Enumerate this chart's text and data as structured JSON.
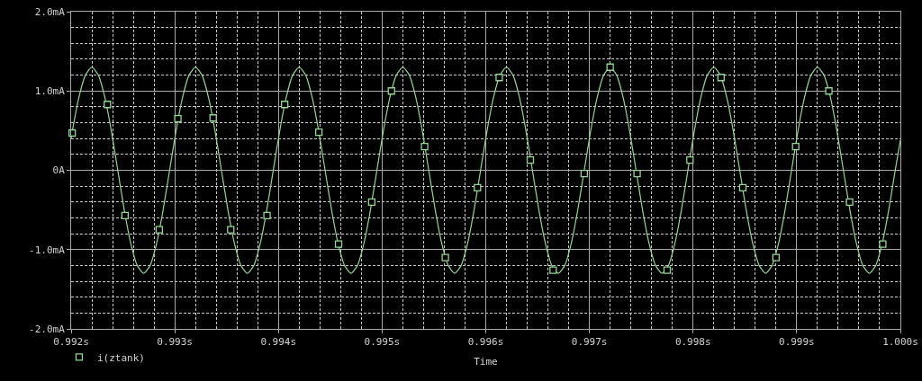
{
  "chart_data": {
    "type": "line",
    "xlabel": "Time",
    "xlim": [
      0.992,
      1.0
    ],
    "xticks": [
      {
        "value": 0.992,
        "label": "0.992s"
      },
      {
        "value": 0.9922,
        "label": null
      },
      {
        "value": 0.9924,
        "label": null
      },
      {
        "value": 0.9926,
        "label": null
      },
      {
        "value": 0.9928,
        "label": null
      },
      {
        "value": 0.993,
        "label": "0.993s"
      },
      {
        "value": 0.9932,
        "label": null
      },
      {
        "value": 0.9934,
        "label": null
      },
      {
        "value": 0.9936,
        "label": null
      },
      {
        "value": 0.9938,
        "label": null
      },
      {
        "value": 0.994,
        "label": "0.994s"
      },
      {
        "value": 0.9942,
        "label": null
      },
      {
        "value": 0.9944,
        "label": null
      },
      {
        "value": 0.9946,
        "label": null
      },
      {
        "value": 0.9948,
        "label": null
      },
      {
        "value": 0.995,
        "label": "0.995s"
      },
      {
        "value": 0.9952,
        "label": null
      },
      {
        "value": 0.9954,
        "label": null
      },
      {
        "value": 0.9956,
        "label": null
      },
      {
        "value": 0.9958,
        "label": null
      },
      {
        "value": 0.996,
        "label": "0.996s"
      },
      {
        "value": 0.9962,
        "label": null
      },
      {
        "value": 0.9964,
        "label": null
      },
      {
        "value": 0.9966,
        "label": null
      },
      {
        "value": 0.9968,
        "label": null
      },
      {
        "value": 0.997,
        "label": "0.997s"
      },
      {
        "value": 0.9972,
        "label": null
      },
      {
        "value": 0.9974,
        "label": null
      },
      {
        "value": 0.9976,
        "label": null
      },
      {
        "value": 0.9978,
        "label": null
      },
      {
        "value": 0.998,
        "label": "0.998s"
      },
      {
        "value": 0.9982,
        "label": null
      },
      {
        "value": 0.9984,
        "label": null
      },
      {
        "value": 0.9986,
        "label": null
      },
      {
        "value": 0.9988,
        "label": null
      },
      {
        "value": 0.999,
        "label": "0.999s"
      },
      {
        "value": 0.9992,
        "label": null
      },
      {
        "value": 0.9994,
        "label": null
      },
      {
        "value": 0.9996,
        "label": null
      },
      {
        "value": 0.9998,
        "label": null
      },
      {
        "value": 1.0,
        "label": "1.000s"
      }
    ],
    "ylim": [
      -2.0,
      2.0
    ],
    "yticks": [
      {
        "value": -2.0,
        "label": "-2.0mA"
      },
      {
        "value": -1.8,
        "label": null
      },
      {
        "value": -1.6,
        "label": null
      },
      {
        "value": -1.4,
        "label": null
      },
      {
        "value": -1.2,
        "label": null
      },
      {
        "value": -1.0,
        "label": "-1.0mA"
      },
      {
        "value": -0.8,
        "label": null
      },
      {
        "value": -0.6,
        "label": null
      },
      {
        "value": -0.4,
        "label": null
      },
      {
        "value": -0.2,
        "label": null
      },
      {
        "value": 0,
        "label": "0A"
      },
      {
        "value": 0.2,
        "label": null
      },
      {
        "value": 0.4,
        "label": null
      },
      {
        "value": 0.6,
        "label": null
      },
      {
        "value": 0.8,
        "label": null
      },
      {
        "value": 1.0,
        "label": "1.0mA"
      },
      {
        "value": 1.2,
        "label": null
      },
      {
        "value": 1.4,
        "label": null
      },
      {
        "value": 1.6,
        "label": null
      },
      {
        "value": 1.8,
        "label": null
      },
      {
        "value": 2.0,
        "label": "2.0mA"
      }
    ],
    "grid": true,
    "legend": "bottom left",
    "line_style": "solid",
    "series": [
      {
        "color": "#8fd88f",
        "x": [
          0.992,
          0.9920125,
          0.992075,
          0.9921375,
          0.9922,
          0.9922625,
          0.992325,
          0.9923875,
          0.99245,
          0.9925125,
          0.992575,
          0.9926375,
          0.9927,
          0.9927625,
          0.992825,
          0.9928875,
          0.99295,
          0.9930125,
          0.993075,
          0.9931375,
          0.9932,
          0.9932625,
          0.993325,
          0.9933875,
          0.99345,
          0.9935125,
          0.993575,
          0.9936375,
          0.9937,
          0.9937625,
          0.993825,
          0.9938875,
          0.99395,
          0.9940125,
          0.994075,
          0.9941375,
          0.9942,
          0.9942625,
          0.994325,
          0.9943875,
          0.99445,
          0.9945125,
          0.994575,
          0.9946375,
          0.9947,
          0.9947625,
          0.994825,
          0.9948875,
          0.99495,
          0.9950125,
          0.995075,
          0.9951375,
          0.9952,
          0.9952625,
          0.995325,
          0.9953875,
          0.99545,
          0.9955125,
          0.995575,
          0.9956375,
          0.9957,
          0.9957625,
          0.995825,
          0.9958875,
          0.99595,
          0.9960125,
          0.996075,
          0.9961375,
          0.9962,
          0.9962625,
          0.996325,
          0.9963875,
          0.99645,
          0.9965125,
          0.996575,
          0.9966375,
          0.9967,
          0.9967625,
          0.996825,
          0.9968875,
          0.99695,
          0.9970125,
          0.997075,
          0.9971375,
          0.9972,
          0.9972625,
          0.997325,
          0.9973875,
          0.99745,
          0.9975125,
          0.997575,
          0.9976375,
          0.9977,
          0.9977625,
          0.997825,
          0.9978875,
          0.99795,
          0.9980125,
          0.998075,
          0.9981375,
          0.9982,
          0.9982625,
          0.998325,
          0.9983875,
          0.99845,
          0.9985125,
          0.998575,
          0.9986375,
          0.9987,
          0.9987625,
          0.998825,
          0.9988875,
          0.99895,
          0.9990125,
          0.999075,
          0.9991375,
          0.9992,
          0.9992625,
          0.999325,
          0.9993875,
          0.99945,
          0.9995125,
          0.999575,
          0.9996375,
          0.9997,
          0.9997625,
          0.999825,
          0.9998875,
          0.99995,
          1.0
        ],
        "values": [
          0.4,
          0.5,
          0.92,
          1.2,
          1.3,
          1.2,
          0.92,
          0.5,
          0,
          -0.5,
          -0.92,
          -1.2,
          -1.3,
          -1.2,
          -0.92,
          -0.5,
          0,
          0.5,
          0.92,
          1.2,
          1.3,
          1.2,
          0.92,
          0.5,
          0,
          -0.5,
          -0.92,
          -1.2,
          -1.3,
          -1.2,
          -0.92,
          -0.5,
          0,
          0.5,
          0.92,
          1.2,
          1.3,
          1.2,
          0.92,
          0.5,
          0,
          -0.5,
          -0.92,
          -1.2,
          -1.3,
          -1.2,
          -0.92,
          -0.5,
          0,
          0.5,
          0.92,
          1.2,
          1.3,
          1.2,
          0.92,
          0.5,
          0,
          -0.5,
          -0.92,
          -1.2,
          -1.3,
          -1.2,
          -0.92,
          -0.5,
          0,
          0.5,
          0.92,
          1.2,
          1.3,
          1.2,
          0.92,
          0.5,
          0,
          -0.5,
          -0.92,
          -1.2,
          -1.3,
          -1.2,
          -0.92,
          -0.5,
          0,
          0.5,
          0.92,
          1.2,
          1.3,
          1.2,
          0.92,
          0.5,
          0,
          -0.5,
          -0.92,
          -1.2,
          -1.3,
          -1.2,
          -0.92,
          -0.5,
          0,
          0.5,
          0.92,
          1.2,
          1.3,
          1.2,
          0.92,
          0.5,
          0,
          -0.5,
          -0.92,
          -1.2,
          -1.3,
          -1.2,
          -0.92,
          -0.5,
          0,
          0.5,
          0.92,
          1.2,
          1.3,
          1.2,
          0.92,
          0.5,
          0,
          -0.5,
          -0.92,
          -1.2,
          -1.3,
          -1.2,
          -0.92,
          -0.5,
          0,
          0.38
        ]
      },
      {
        "type": "scatter",
        "name": "i(ztank)",
        "color": "#8fd88f",
        "marker": "square",
        "x": [
          0.99201,
          0.99235,
          0.99252,
          0.99285,
          0.99303,
          0.99337,
          0.99354,
          0.99389,
          0.99406,
          0.99439,
          0.99458,
          0.9949,
          0.99509,
          0.99541,
          0.99561,
          0.99592,
          0.99613,
          0.99643,
          0.99665,
          0.99695,
          0.9972,
          0.99746,
          0.99775,
          0.99797,
          0.99827,
          0.99848,
          0.9988,
          0.99899,
          0.99931,
          0.99951,
          0.99983
        ],
        "values": [
          0.47,
          0.83,
          -0.57,
          -0.75,
          0.65,
          0.66,
          -0.75,
          -0.57,
          0.83,
          0.48,
          -0.93,
          -0.4,
          1.0,
          0.3,
          -1.1,
          -0.22,
          1.17,
          0.13,
          -1.26,
          -0.04,
          1.3,
          -0.04,
          -1.26,
          0.13,
          1.17,
          -0.22,
          -1.1,
          0.3,
          1.0,
          -0.4,
          -0.93
        ]
      }
    ]
  }
}
